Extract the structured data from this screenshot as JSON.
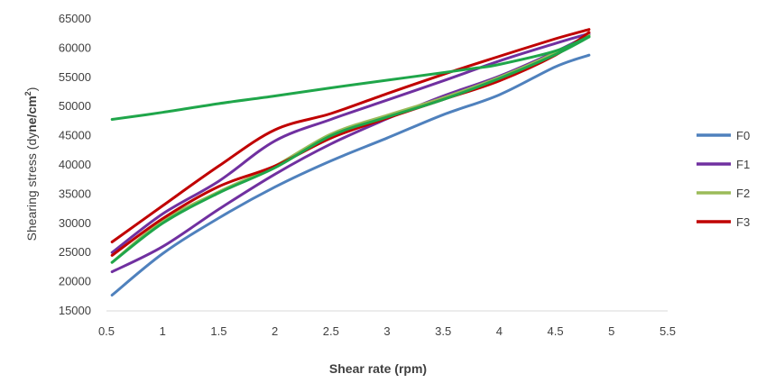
{
  "chart_data": {
    "type": "line",
    "title": "",
    "xlabel": "Shear rate (rpm)",
    "ylabel_main": "Shearing stress (dy",
    "ylabel_bold": "ne/cm",
    "ylabel_sup": "2",
    "ylabel_end": ")",
    "xlim": [
      0.5,
      5.5
    ],
    "ylim": [
      15000,
      65000
    ],
    "x_ticks": [
      "0.5",
      "1",
      "1.5",
      "2",
      "2.5",
      "3",
      "3.5",
      "4",
      "4.5",
      "5",
      "5.5"
    ],
    "y_ticks": [
      "15000",
      "20000",
      "25000",
      "30000",
      "35000",
      "40000",
      "45000",
      "50000",
      "55000",
      "60000",
      "65000"
    ],
    "grid": false,
    "legend_position": "right",
    "series": [
      {
        "name": "F0",
        "color": "#4F81BD",
        "x": [
          0.55,
          1,
          1.5,
          2,
          2.5,
          3,
          3.5,
          4,
          4.5,
          4.8
        ],
        "y": [
          17700,
          24800,
          30900,
          36200,
          40700,
          44600,
          48600,
          52000,
          56800,
          58800
        ]
      },
      {
        "name": "F1",
        "color": "#7030A0",
        "x": [
          0.55,
          1,
          1.5,
          2,
          2.5,
          3,
          3.5,
          4,
          4.5,
          4.8
        ],
        "y": [
          21700,
          26000,
          32400,
          38400,
          43600,
          47900,
          51800,
          55200,
          59400,
          62300
        ]
      },
      {
        "name": "F1",
        "color": "#7030A0",
        "x": [
          0.55,
          1,
          1.5,
          2,
          2.5,
          3,
          3.5,
          4,
          4.5,
          4.8
        ],
        "y": [
          25000,
          31600,
          37200,
          44100,
          47800,
          51100,
          54400,
          57800,
          60800,
          62500
        ]
      },
      {
        "name": "F2",
        "color": "#9BBB59",
        "x": [
          0.55,
          1,
          1.5,
          2,
          2.5,
          3,
          3.5,
          4,
          4.5,
          4.8
        ],
        "y": [
          23300,
          30400,
          35400,
          39800,
          45300,
          48500,
          51500,
          55000,
          59200,
          62200
        ]
      },
      {
        "name": "F3",
        "color": "#C00000",
        "x": [
          0.55,
          1,
          1.5,
          2,
          2.5,
          3,
          3.5,
          4,
          4.5,
          4.8
        ],
        "y": [
          26800,
          33000,
          39800,
          46000,
          48800,
          52200,
          55500,
          58600,
          61600,
          63200
        ]
      },
      {
        "name": "F3",
        "color": "#C00000",
        "x": [
          0.55,
          1,
          1.5,
          2,
          2.5,
          3,
          3.5,
          4,
          4.5,
          4.8
        ],
        "y": [
          24500,
          30800,
          36300,
          39800,
          44600,
          48000,
          51200,
          54400,
          58800,
          62700
        ]
      },
      {
        "name": "",
        "color": "#1FA64A",
        "x": [
          0.55,
          1,
          1.5,
          2,
          2.5,
          3,
          3.5,
          3.8,
          4,
          4.5,
          4.8
        ],
        "y": [
          47800,
          49000,
          50500,
          51800,
          53200,
          54500,
          55800,
          56600,
          57200,
          59500,
          62000
        ]
      },
      {
        "name": "",
        "color": "#1FA64A",
        "x": [
          0.55,
          1,
          1.5,
          2,
          2.5,
          3,
          3.5,
          4,
          4.5,
          4.8
        ],
        "y": [
          23300,
          30000,
          35200,
          39500,
          45000,
          48200,
          51200,
          54800,
          58900,
          61900
        ]
      }
    ],
    "legend": [
      {
        "name": "F0",
        "color": "#4F81BD"
      },
      {
        "name": "F1",
        "color": "#7030A0"
      },
      {
        "name": "F2",
        "color": "#9BBB59"
      },
      {
        "name": "F3",
        "color": "#C00000"
      }
    ]
  }
}
